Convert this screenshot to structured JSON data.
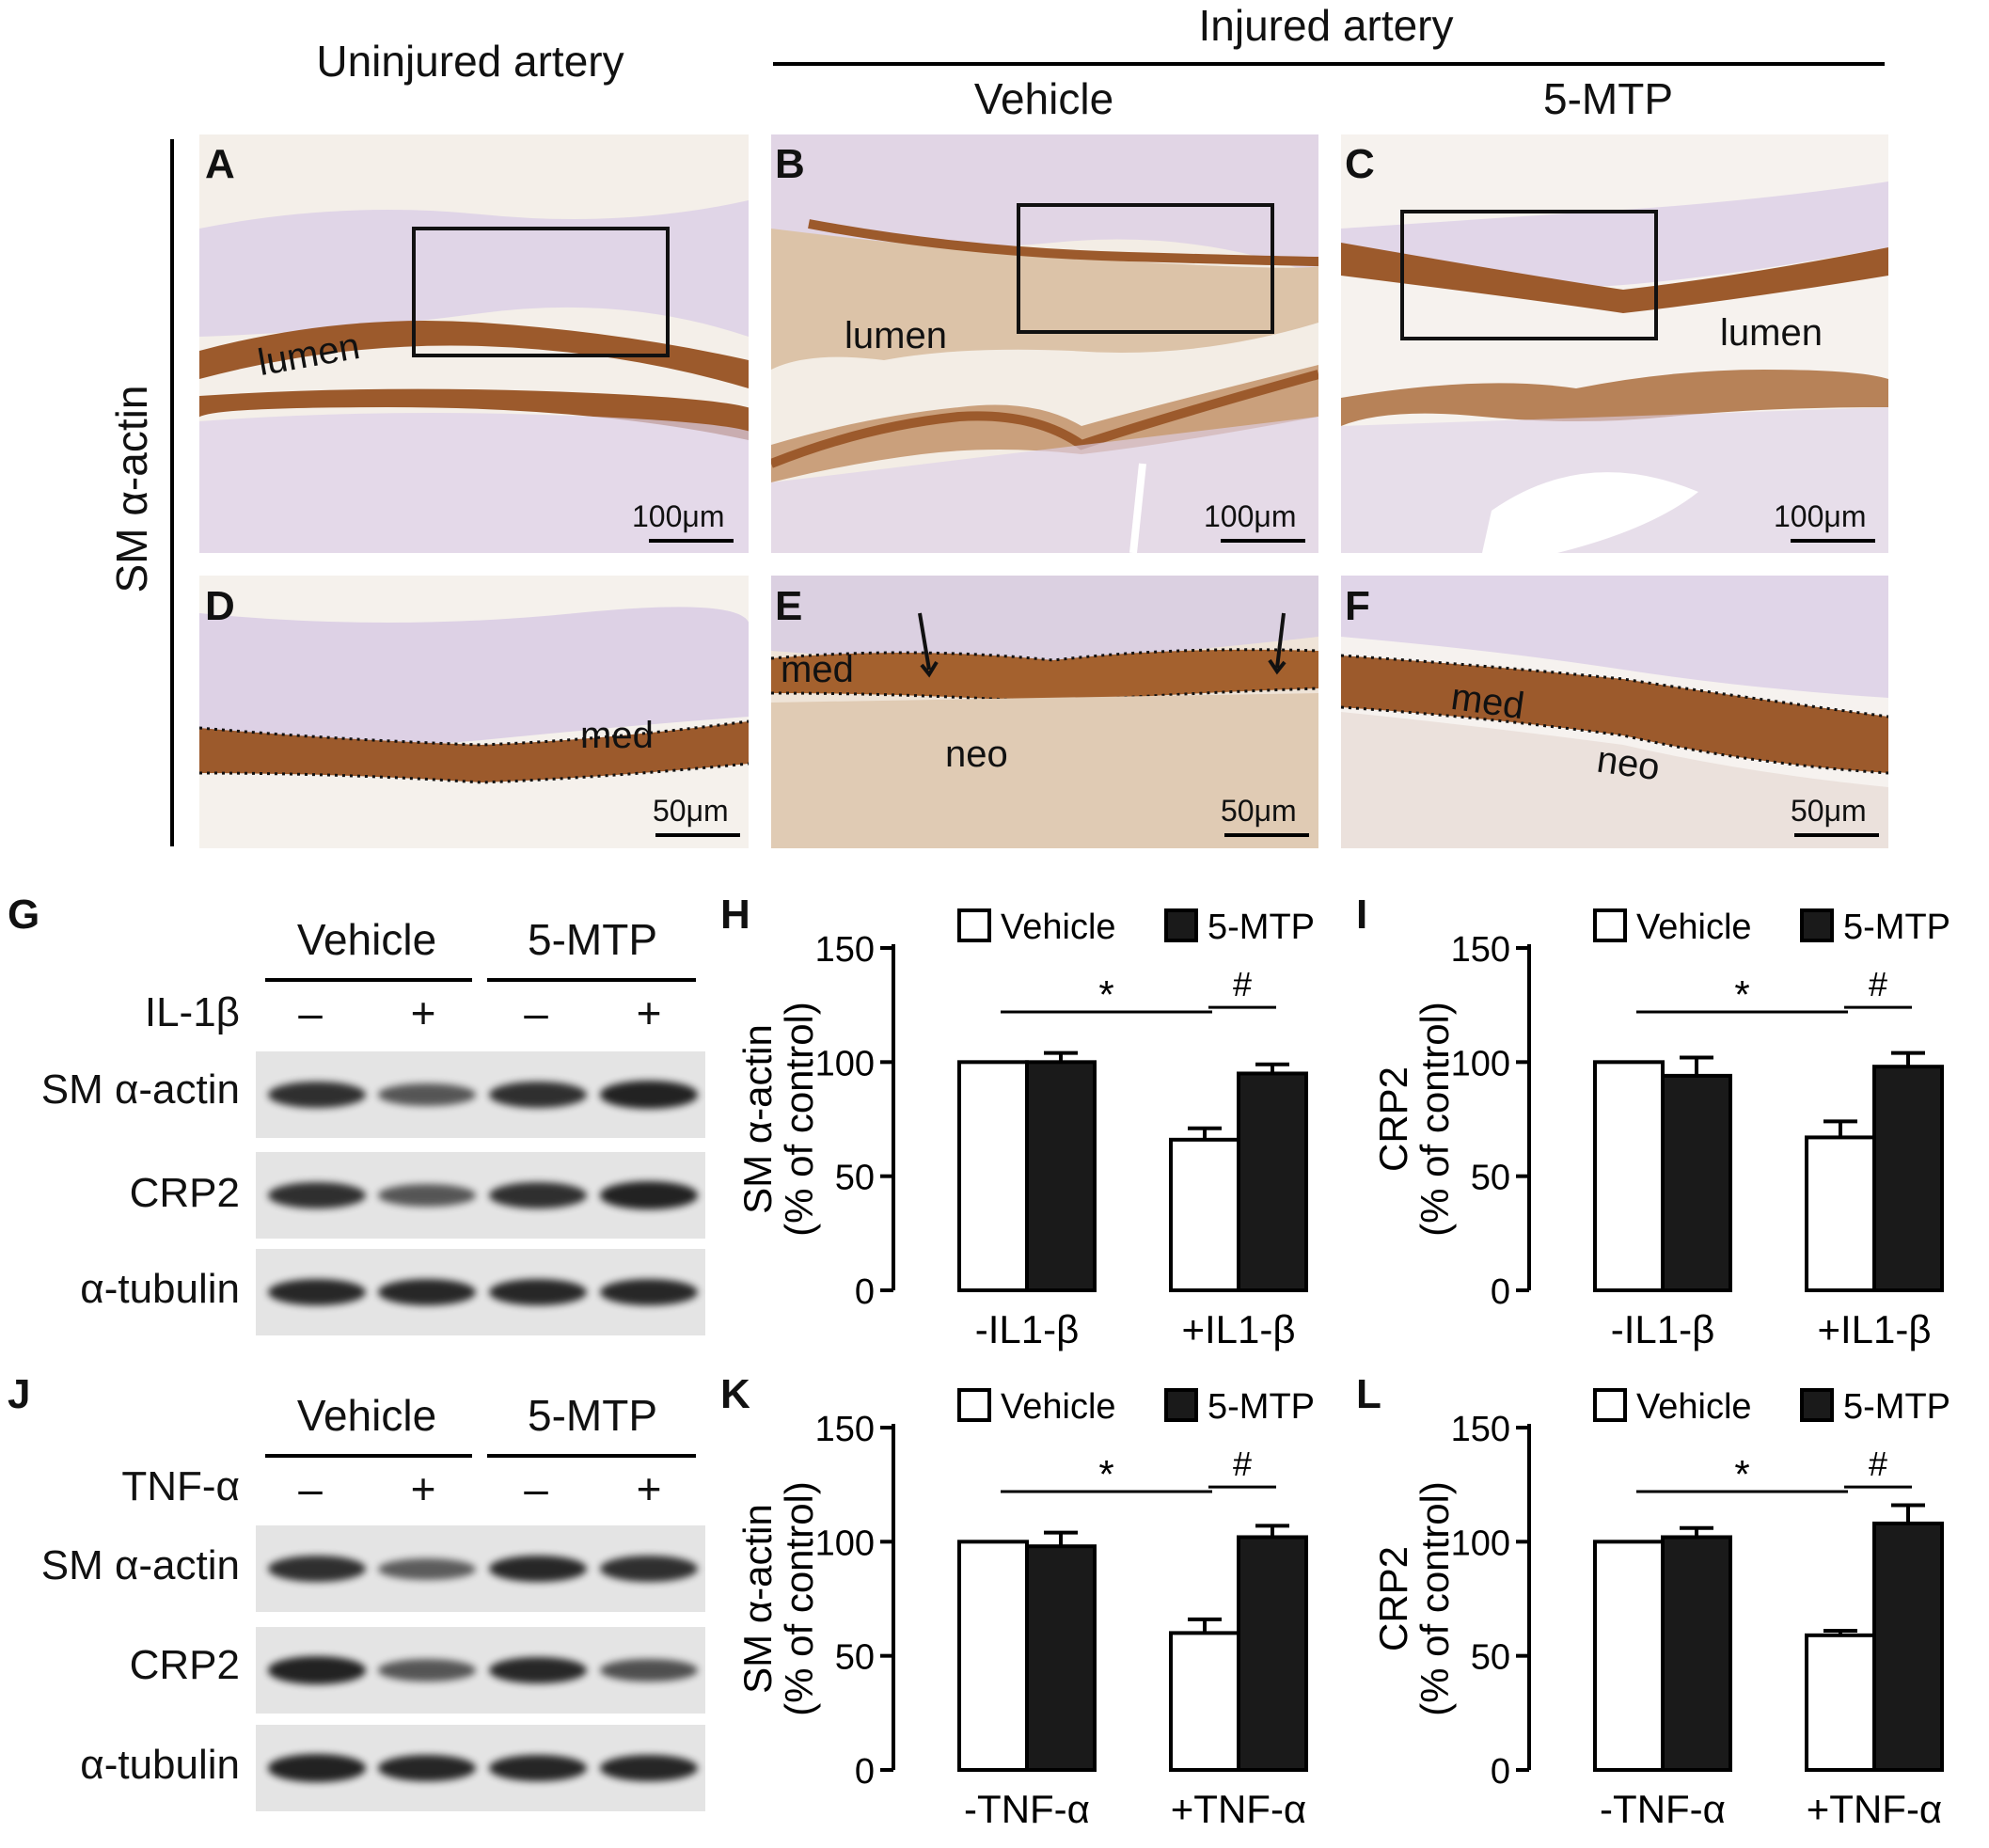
{
  "headers": {
    "uninjured": "Uninjured artery",
    "injured": "Injured artery",
    "vehicle": "Vehicle",
    "mtp": "5-MTP"
  },
  "stain_label": "SM α-actin",
  "panels": {
    "A": "A",
    "B": "B",
    "C": "C",
    "D": "D",
    "E": "E",
    "F": "F",
    "G": "G",
    "H": "H",
    "I": "I",
    "J": "J",
    "K": "K",
    "L": "L"
  },
  "micro": {
    "lumen": "lumen",
    "med": "med",
    "neo": "neo",
    "scale100": "100μm",
    "scale50": "50μm"
  },
  "colors": {
    "smooth_muscle_stain": "#9c5a2c",
    "hematoxylin": "#7a5fb0",
    "bar_vehicle": "#ffffff",
    "bar_mtp": "#1a1a1a"
  },
  "blot_G": {
    "group_vehicle": "Vehicle",
    "group_mtp": "5-MTP",
    "treatment": "IL-1β",
    "signs": [
      "–",
      "+",
      "–",
      "+"
    ],
    "rows": [
      "SM α-actin",
      "CRP2",
      "α-tubulin"
    ],
    "intensity": [
      [
        0.85,
        0.55,
        0.85,
        0.95
      ],
      [
        0.85,
        0.55,
        0.85,
        0.95
      ],
      [
        0.9,
        0.9,
        0.9,
        0.9
      ]
    ]
  },
  "blot_J": {
    "group_vehicle": "Vehicle",
    "group_mtp": "5-MTP",
    "treatment": "TNF-α",
    "signs": [
      "–",
      "+",
      "–",
      "+"
    ],
    "rows": [
      "SM α-actin",
      "CRP2",
      "α-tubulin"
    ],
    "intensity": [
      [
        0.85,
        0.5,
        0.9,
        0.85
      ],
      [
        0.95,
        0.55,
        0.9,
        0.6
      ],
      [
        0.95,
        0.92,
        0.92,
        0.92
      ]
    ]
  },
  "chart_data": [
    {
      "type": "bar",
      "panel": "H",
      "categories": [
        "-IL1-β",
        "+IL1-β"
      ],
      "ylabel": "SM α-actin",
      "ylabel2": "(% of control)",
      "ylim": [
        0,
        150
      ],
      "yticks": [
        "0",
        "50",
        "100",
        "150"
      ],
      "series": [
        {
          "name": "Vehicle",
          "values": [
            100,
            66
          ],
          "err": [
            0,
            5
          ]
        },
        {
          "name": "5-MTP",
          "values": [
            100,
            95
          ],
          "err": [
            4,
            4
          ]
        }
      ],
      "annotations": {
        "star": "*",
        "hash": "#"
      }
    },
    {
      "type": "bar",
      "panel": "I",
      "categories": [
        "-IL1-β",
        "+IL1-β"
      ],
      "ylabel": "CRP2",
      "ylabel2": "(% of control)",
      "ylim": [
        0,
        150
      ],
      "yticks": [
        "0",
        "50",
        "100",
        "150"
      ],
      "series": [
        {
          "name": "Vehicle",
          "values": [
            100,
            67
          ],
          "err": [
            0,
            7
          ]
        },
        {
          "name": "5-MTP",
          "values": [
            94,
            98
          ],
          "err": [
            8,
            6
          ]
        }
      ],
      "annotations": {
        "star": "*",
        "hash": "#"
      }
    },
    {
      "type": "bar",
      "panel": "K",
      "categories": [
        "-TNF-α",
        "+TNF-α"
      ],
      "ylabel": "SM α-actin",
      "ylabel2": "(% of control)",
      "ylim": [
        0,
        150
      ],
      "yticks": [
        "0",
        "50",
        "100",
        "150"
      ],
      "series": [
        {
          "name": "Vehicle",
          "values": [
            100,
            60
          ],
          "err": [
            0,
            6
          ]
        },
        {
          "name": "5-MTP",
          "values": [
            98,
            102
          ],
          "err": [
            6,
            5
          ]
        }
      ],
      "annotations": {
        "star": "*",
        "hash": "#"
      }
    },
    {
      "type": "bar",
      "panel": "L",
      "categories": [
        "-TNF-α",
        "+TNF-α"
      ],
      "ylabel": "CRP2",
      "ylabel2": "(% of control)",
      "ylim": [
        0,
        150
      ],
      "yticks": [
        "0",
        "50",
        "100",
        "150"
      ],
      "series": [
        {
          "name": "Vehicle",
          "values": [
            100,
            59
          ],
          "err": [
            0,
            2
          ]
        },
        {
          "name": "5-MTP",
          "values": [
            102,
            108
          ],
          "err": [
            4,
            8
          ]
        }
      ],
      "annotations": {
        "star": "*",
        "hash": "#"
      }
    }
  ]
}
